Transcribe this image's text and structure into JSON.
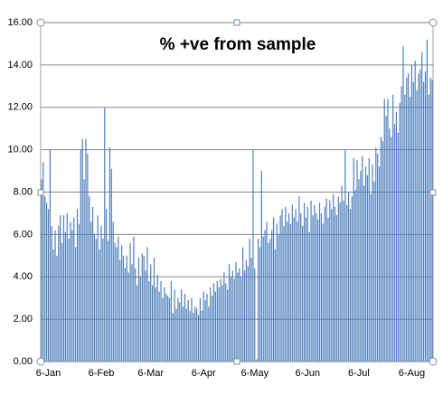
{
  "chart_data": {
    "type": "bar",
    "title": "% +ve from sample",
    "color": "#4f81bd",
    "grid": true,
    "ylim": [
      0,
      16
    ],
    "yticks": [
      {
        "value": 0,
        "label": "0.00"
      },
      {
        "value": 2,
        "label": "2.00"
      },
      {
        "value": 4,
        "label": "4.00"
      },
      {
        "value": 6,
        "label": "6.00"
      },
      {
        "value": 8,
        "label": "8.00"
      },
      {
        "value": 10,
        "label": "10.00"
      },
      {
        "value": 12,
        "label": "12.00"
      },
      {
        "value": 14,
        "label": "14.00"
      },
      {
        "value": 16,
        "label": "16.00"
      }
    ],
    "categories": [
      null,
      null,
      null,
      null,
      "6-Jan",
      null,
      null,
      null,
      null,
      null,
      null,
      null,
      null,
      null,
      null,
      null,
      null,
      null,
      null,
      null,
      null,
      null,
      null,
      null,
      null,
      null,
      null,
      null,
      null,
      null,
      null,
      null,
      null,
      null,
      null,
      "6-Feb",
      null,
      null,
      null,
      null,
      null,
      null,
      null,
      null,
      null,
      null,
      null,
      null,
      null,
      null,
      null,
      null,
      null,
      null,
      null,
      null,
      null,
      null,
      null,
      null,
      null,
      null,
      null,
      null,
      "6-Mar",
      null,
      null,
      null,
      null,
      null,
      null,
      null,
      null,
      null,
      null,
      null,
      null,
      null,
      null,
      null,
      null,
      null,
      null,
      null,
      null,
      null,
      null,
      null,
      null,
      null,
      null,
      null,
      null,
      null,
      null,
      "6-Apr",
      null,
      null,
      null,
      null,
      null,
      null,
      null,
      null,
      null,
      null,
      null,
      null,
      null,
      null,
      null,
      null,
      null,
      null,
      null,
      null,
      null,
      null,
      null,
      null,
      null,
      null,
      null,
      null,
      null,
      "6-May",
      null,
      null,
      null,
      null,
      null,
      null,
      null,
      null,
      null,
      null,
      null,
      null,
      null,
      null,
      null,
      null,
      null,
      null,
      null,
      null,
      null,
      null,
      null,
      null,
      null,
      null,
      null,
      null,
      null,
      null,
      "6-Jun",
      null,
      null,
      null,
      null,
      null,
      null,
      null,
      null,
      null,
      null,
      null,
      null,
      null,
      null,
      null,
      null,
      null,
      null,
      null,
      null,
      null,
      null,
      null,
      null,
      null,
      null,
      null,
      null,
      null,
      "6-Jul",
      null,
      null,
      null,
      null,
      null,
      null,
      null,
      null,
      null,
      null,
      null,
      null,
      null,
      null,
      null,
      null,
      null,
      null,
      null,
      null,
      null,
      null,
      null,
      null,
      null,
      null,
      null,
      null,
      null,
      null,
      "6-Aug",
      null,
      null,
      null,
      null,
      null,
      null,
      null,
      null,
      null,
      null,
      null,
      null
    ],
    "values": [
      8.6,
      9.4,
      7.8,
      7.5,
      7.2,
      10.0,
      6.4,
      5.3,
      6.2,
      5.0,
      6.4,
      6.9,
      5.6,
      6.9,
      6.1,
      7.0,
      5.8,
      6.6,
      6.2,
      6.8,
      5.4,
      7.2,
      6.5,
      10.0,
      10.5,
      8.6,
      10.5,
      9.8,
      7.8,
      6.6,
      7.3,
      6.0,
      5.8,
      6.9,
      5.3,
      6.4,
      5.8,
      12.0,
      7.2,
      5.7,
      10.1,
      9.1,
      6.6,
      5.6,
      5.4,
      5.9,
      4.8,
      5.5,
      5.0,
      4.4,
      5.0,
      4.2,
      5.6,
      4.6,
      5.9,
      4.4,
      3.6,
      4.9,
      4.0,
      5.1,
      5.0,
      4.3,
      5.4,
      3.8,
      4.6,
      3.6,
      4.9,
      3.5,
      4.1,
      3.3,
      3.8,
      3.0,
      3.5,
      3.2,
      3.1,
      3.0,
      3.8,
      2.3,
      3.4,
      2.5,
      3.0,
      2.8,
      3.4,
      2.6,
      3.2,
      2.5,
      2.9,
      2.4,
      3.0,
      2.3,
      2.6,
      2.5,
      2.2,
      3.0,
      2.4,
      3.3,
      2.9,
      3.2,
      2.6,
      3.5,
      3.1,
      3.7,
      3.3,
      3.8,
      3.5,
      3.9,
      3.6,
      4.2,
      3.7,
      3.4,
      4.6,
      4.0,
      4.3,
      3.9,
      4.7,
      4.2,
      4.4,
      4.0,
      5.4,
      4.3,
      4.8,
      4.5,
      5.8,
      4.9,
      10.0,
      4.4,
      0.1,
      5.8,
      5.4,
      9.0,
      5.9,
      6.2,
      6.6,
      5.6,
      5.8,
      6.2,
      6.8,
      5.3,
      6.5,
      6.0,
      6.9,
      7.2,
      6.4,
      7.3,
      6.6,
      7.0,
      6.5,
      7.4,
      6.8,
      7.2,
      6.6,
      7.8,
      7.0,
      6.4,
      7.5,
      6.8,
      7.3,
      6.1,
      7.6,
      6.9,
      7.4,
      7.0,
      6.7,
      7.5,
      7.0,
      6.5,
      7.3,
      7.7,
      6.8,
      7.6,
      7.2,
      7.9,
      7.3,
      6.9,
      7.8,
      7.5,
      8.3,
      7.6,
      10.0,
      7.4,
      8.0,
      7.2,
      7.8,
      9.6,
      8.1,
      9.5,
      8.6,
      9.0,
      9.7,
      8.3,
      9.2,
      8.8,
      9.6,
      7.9,
      9.3,
      8.5,
      10.1,
      9.8,
      9.2,
      10.6,
      10.4,
      12.4,
      11.6,
      12.4,
      11.0,
      10.6,
      12.6,
      11.2,
      11.8,
      10.8,
      12.2,
      13.0,
      14.9,
      12.6,
      13.4,
      13.6,
      12.5,
      14.0,
      13.2,
      14.2,
      12.8,
      13.6,
      13.8,
      14.6,
      13.2,
      13.7,
      15.2,
      12.6,
      13.4,
      13.3
    ]
  }
}
